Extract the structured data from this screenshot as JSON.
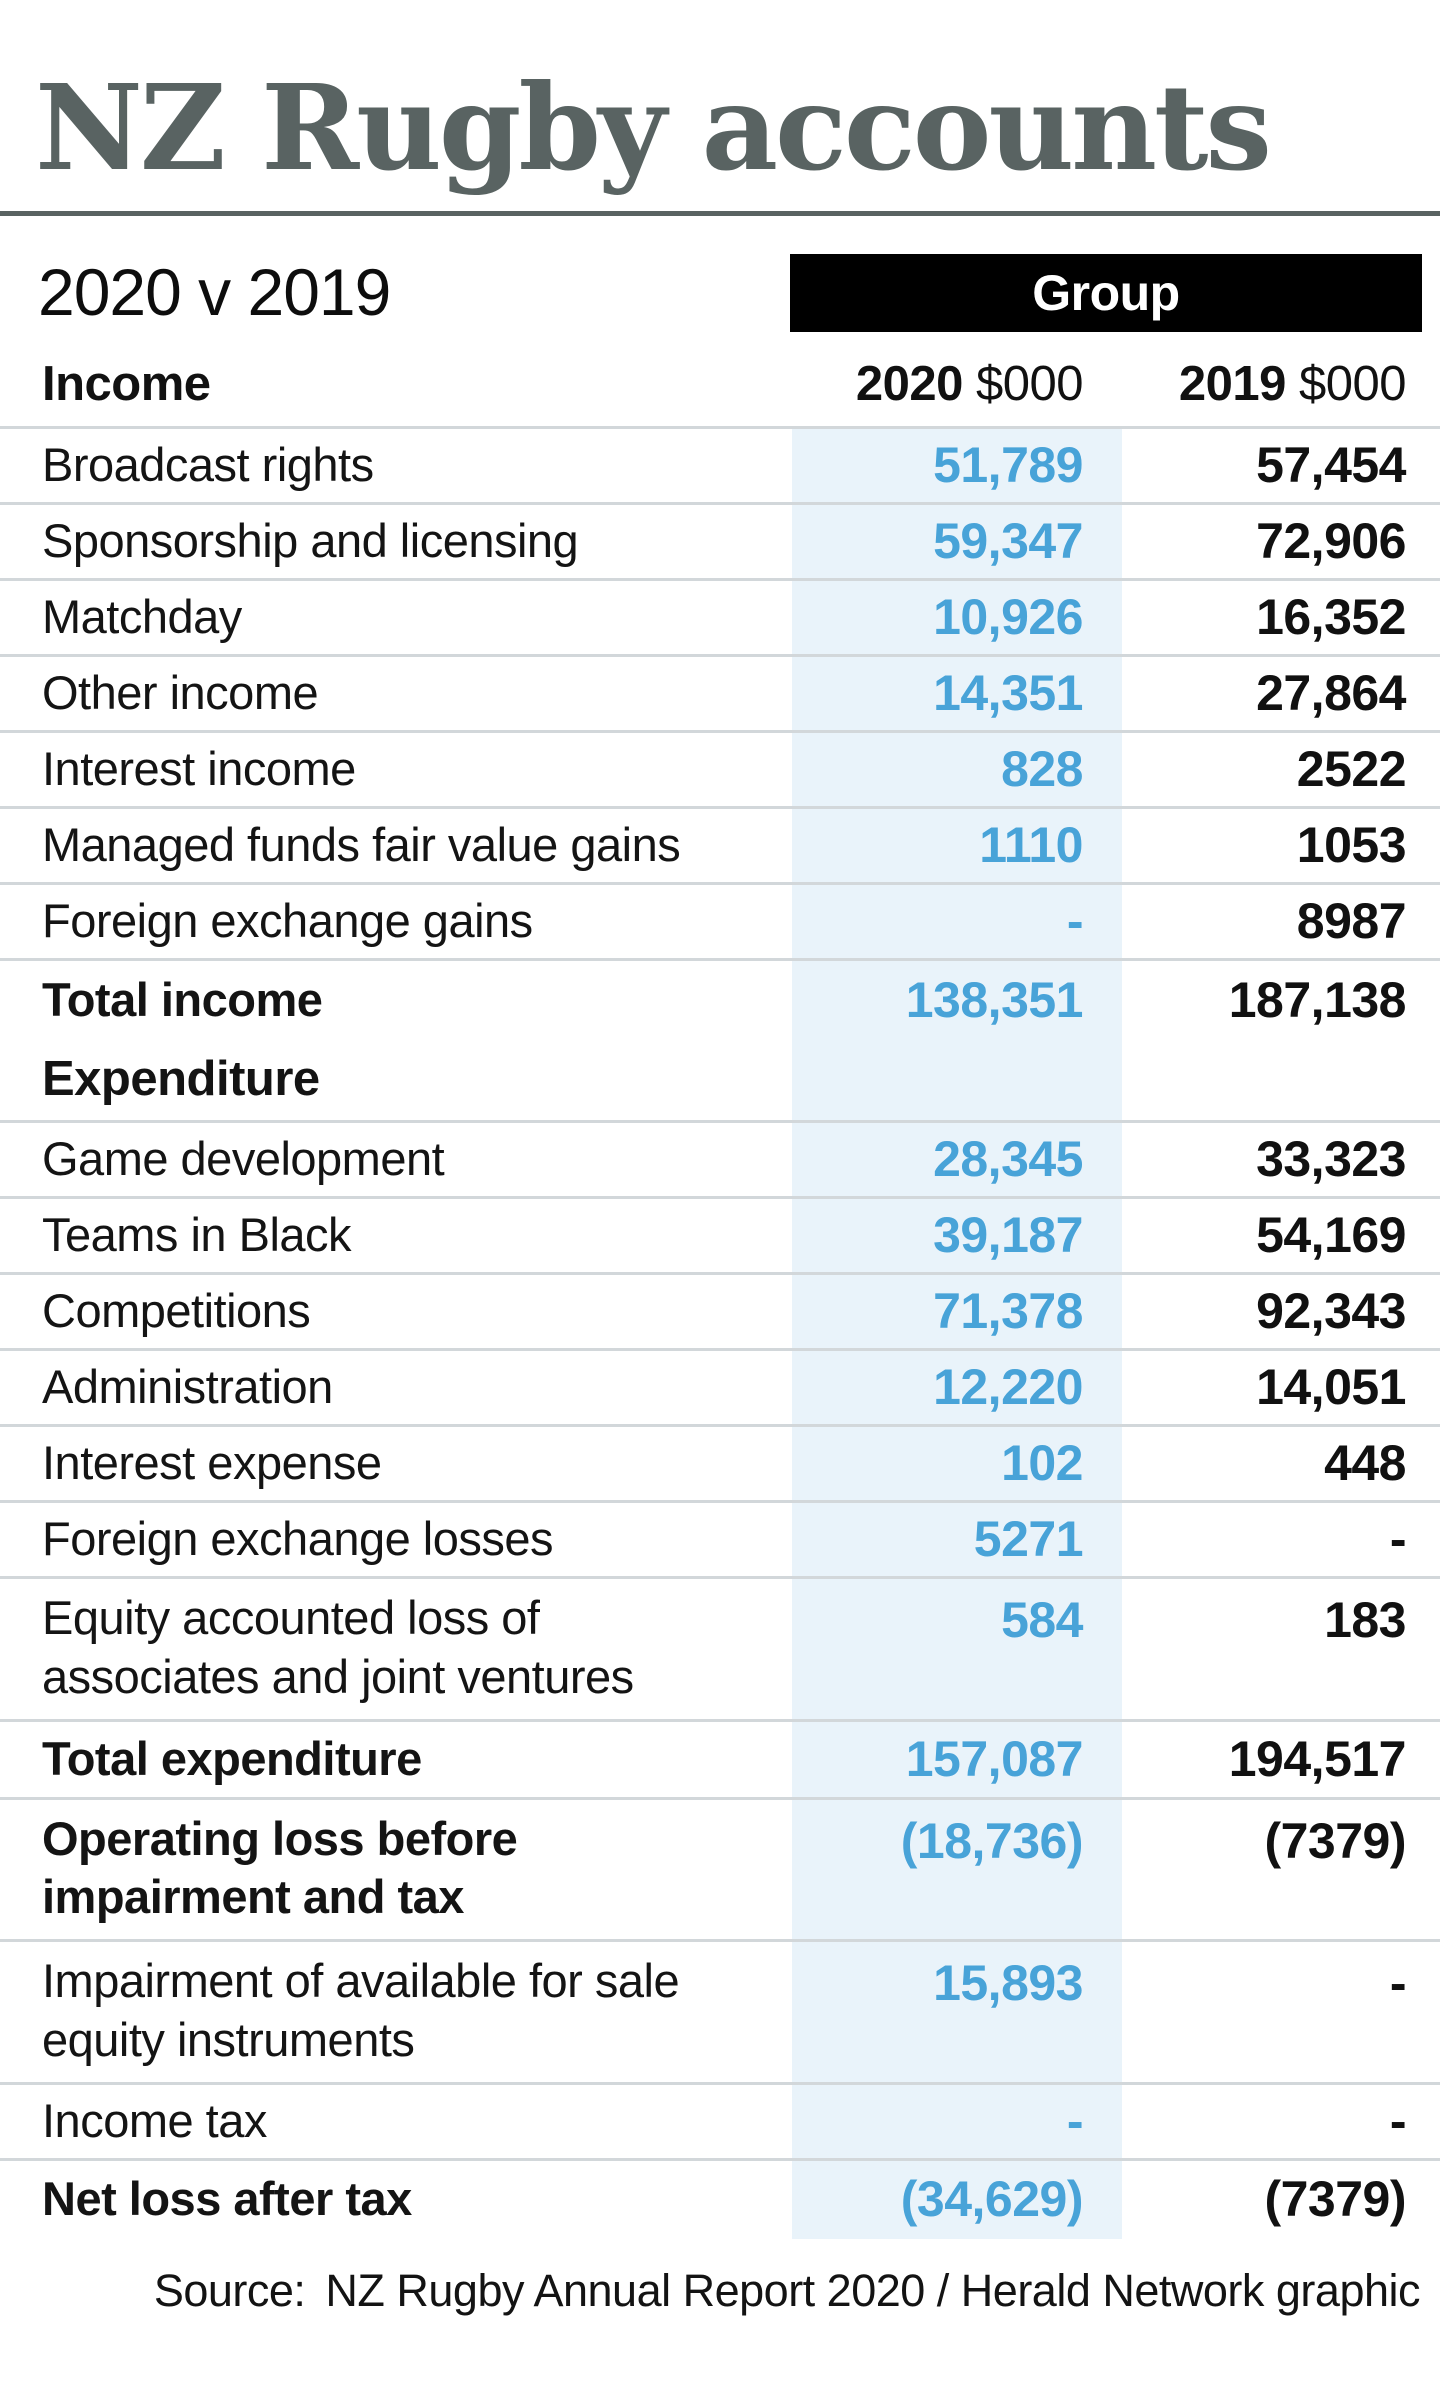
{
  "colors": {
    "title_gray": "#596362",
    "accent_blue": "#48a3d8",
    "band_blue": "#e9f3fa",
    "divider_gray": "#d2d7da",
    "badge_black": "#000000",
    "text_black": "#111111"
  },
  "header": {
    "title": "NZ Rugby accounts",
    "subtitle": "2020 v 2019",
    "group_label": "Group"
  },
  "table": {
    "income_header": "Income",
    "col_2020": {
      "year": "2020",
      "unit": "$000"
    },
    "col_2019": {
      "year": "2019",
      "unit": "$000"
    },
    "rows": [
      {
        "label": "Broadcast rights",
        "v2020": "51,789",
        "v2019": "57,454",
        "bold": false,
        "section": false,
        "divider": true
      },
      {
        "label": "Sponsorship and licensing",
        "v2020": "59,347",
        "v2019": "72,906",
        "bold": false,
        "section": false,
        "divider": true
      },
      {
        "label": "Matchday",
        "v2020": "10,926",
        "v2019": "16,352",
        "bold": false,
        "section": false,
        "divider": true
      },
      {
        "label": "Other income",
        "v2020": "14,351",
        "v2019": "27,864",
        "bold": false,
        "section": false,
        "divider": true
      },
      {
        "label": "Interest income",
        "v2020": "828",
        "v2019": "2522",
        "bold": false,
        "section": false,
        "divider": true
      },
      {
        "label": "Managed funds fair value gains",
        "v2020": "1110",
        "v2019": "1053",
        "bold": false,
        "section": false,
        "divider": true
      },
      {
        "label": "Foreign exchange gains",
        "v2020": "-",
        "v2019": "8987",
        "bold": false,
        "section": false,
        "divider": true
      },
      {
        "label": "Total income",
        "v2020": "138,351",
        "v2019": "187,138",
        "bold": true,
        "section": false,
        "divider": false
      },
      {
        "label": "Expenditure",
        "v2020": "",
        "v2019": "",
        "bold": true,
        "section": true,
        "divider": true
      },
      {
        "label": "Game development",
        "v2020": "28,345",
        "v2019": "33,323",
        "bold": false,
        "section": false,
        "divider": true
      },
      {
        "label": "Teams in Black",
        "v2020": "39,187",
        "v2019": "54,169",
        "bold": false,
        "section": false,
        "divider": true
      },
      {
        "label": "Competitions",
        "v2020": "71,378",
        "v2019": "92,343",
        "bold": false,
        "section": false,
        "divider": true
      },
      {
        "label": "Administration",
        "v2020": "12,220",
        "v2019": "14,051",
        "bold": false,
        "section": false,
        "divider": true
      },
      {
        "label": "Interest expense",
        "v2020": "102",
        "v2019": "448",
        "bold": false,
        "section": false,
        "divider": true
      },
      {
        "label": "Foreign exchange losses",
        "v2020": "5271",
        "v2019": "-",
        "bold": false,
        "section": false,
        "divider": true
      },
      {
        "label": "Equity accounted loss of",
        "label2": "associates and joint ventures",
        "v2020": "584",
        "v2019": "183",
        "bold": false,
        "section": false,
        "divider": true
      },
      {
        "label": "Total expenditure",
        "v2020": "157,087",
        "v2019": "194,517",
        "bold": true,
        "section": false,
        "divider": true
      },
      {
        "label": "Operating loss before",
        "label2": "impairment and tax",
        "v2020": "(18,736)",
        "v2019": "(7379)",
        "bold": true,
        "section": false,
        "divider": true
      },
      {
        "label": "Impairment of available for sale",
        "label2": "equity instruments",
        "v2020": "15,893",
        "v2019": "-",
        "bold": false,
        "section": false,
        "divider": true
      },
      {
        "label": "Income tax",
        "v2020": "-",
        "v2019": "-",
        "bold": false,
        "section": false,
        "divider": true
      },
      {
        "label": "Net loss after tax",
        "v2020": "(34,629)",
        "v2019": "(7379)",
        "bold": true,
        "section": false,
        "divider": false
      }
    ]
  },
  "footer": {
    "source_label": "Source:",
    "source_text": "NZ Rugby Annual Report 2020 / Herald Network graphic"
  },
  "chart_data": {
    "type": "table",
    "title": "NZ Rugby accounts",
    "subtitle": "2020 v 2019",
    "group": "Group",
    "unit": "$000",
    "categories": [
      "Broadcast rights",
      "Sponsorship and licensing",
      "Matchday",
      "Other income",
      "Interest income",
      "Managed funds fair value gains",
      "Foreign exchange gains",
      "Total income",
      "Game development",
      "Teams in Black",
      "Competitions",
      "Administration",
      "Interest expense",
      "Foreign exchange losses",
      "Equity accounted loss of associates and joint ventures",
      "Total expenditure",
      "Operating loss before impairment and tax",
      "Impairment of available for sale equity instruments",
      "Income tax",
      "Net loss after tax"
    ],
    "series": [
      {
        "name": "2020",
        "values": [
          51789,
          59347,
          10926,
          14351,
          828,
          1110,
          null,
          138351,
          28345,
          39187,
          71378,
          12220,
          102,
          5271,
          584,
          157087,
          -18736,
          15893,
          null,
          -34629
        ]
      },
      {
        "name": "2019",
        "values": [
          57454,
          72906,
          16352,
          27864,
          2522,
          1053,
          8987,
          187138,
          33323,
          54169,
          92343,
          14051,
          448,
          null,
          183,
          194517,
          -7379,
          null,
          null,
          -7379
        ]
      }
    ]
  }
}
